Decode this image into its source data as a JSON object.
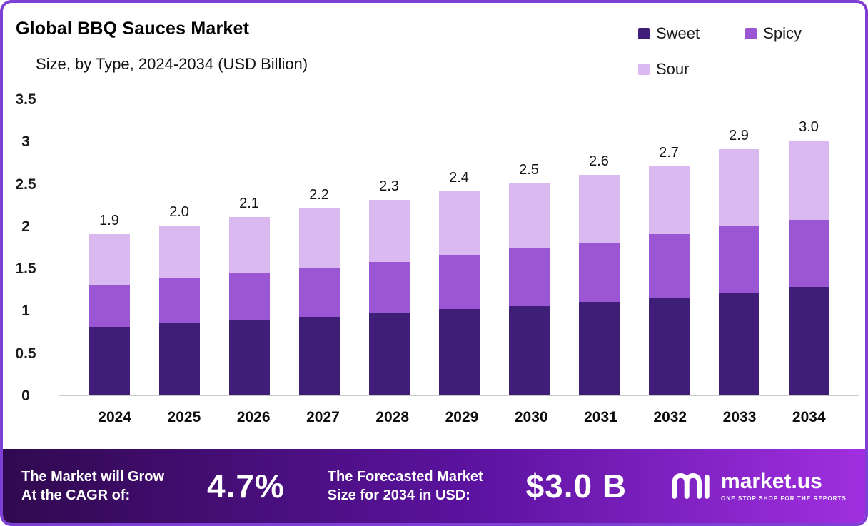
{
  "header": {
    "title": "Global BBQ Sauces Market",
    "subtitle": "Size, by Type, 2024-2034 (USD Billion)"
  },
  "legend": [
    {
      "label": "Sweet",
      "color": "#3f1e78"
    },
    {
      "label": "Spicy",
      "color": "#9b57d3"
    },
    {
      "label": "Sour",
      "color": "#d9b9f0"
    }
  ],
  "chart_data": {
    "type": "bar",
    "stacked": true,
    "title": "Global BBQ Sauces Market Size, by Type, 2024-2034 (USD Billion)",
    "xlabel": "",
    "ylabel": "",
    "ylim": [
      0,
      3.5
    ],
    "yticks": [
      "3.5",
      "3",
      "2.5",
      "2",
      "1.5",
      "1",
      "0.5",
      "0"
    ],
    "legend_position": "top-right",
    "grid": false,
    "categories": [
      "2024",
      "2025",
      "2026",
      "2027",
      "2028",
      "2029",
      "2030",
      "2031",
      "2032",
      "2033",
      "2034"
    ],
    "series": [
      {
        "name": "Sweet",
        "color": "#3f1e78",
        "values": [
          0.8,
          0.84,
          0.88,
          0.92,
          0.97,
          1.01,
          1.05,
          1.1,
          1.15,
          1.21,
          1.27
        ]
      },
      {
        "name": "Spicy",
        "color": "#9b57d3",
        "values": [
          0.5,
          0.54,
          0.56,
          0.58,
          0.6,
          0.64,
          0.68,
          0.7,
          0.75,
          0.78,
          0.8
        ]
      },
      {
        "name": "Sour",
        "color": "#d9b9f0",
        "values": [
          0.6,
          0.62,
          0.66,
          0.7,
          0.73,
          0.75,
          0.77,
          0.8,
          0.8,
          0.91,
          0.93
        ]
      }
    ],
    "totals": [
      "1.9",
      "2.0",
      "2.1",
      "2.2",
      "2.3",
      "2.4",
      "2.5",
      "2.6",
      "2.7",
      "2.9",
      "3.0"
    ]
  },
  "banner": {
    "cagr_label_line1": "The Market will Grow",
    "cagr_label_line2": "At the CAGR of:",
    "cagr_value": "4.7%",
    "forecast_label_line1": "The Forecasted Market",
    "forecast_label_line2": "Size for 2034 in USD:",
    "forecast_value": "$3.0 B",
    "brand": "market.us",
    "brand_tagline": "ONE STOP SHOP FOR THE REPORTS"
  }
}
